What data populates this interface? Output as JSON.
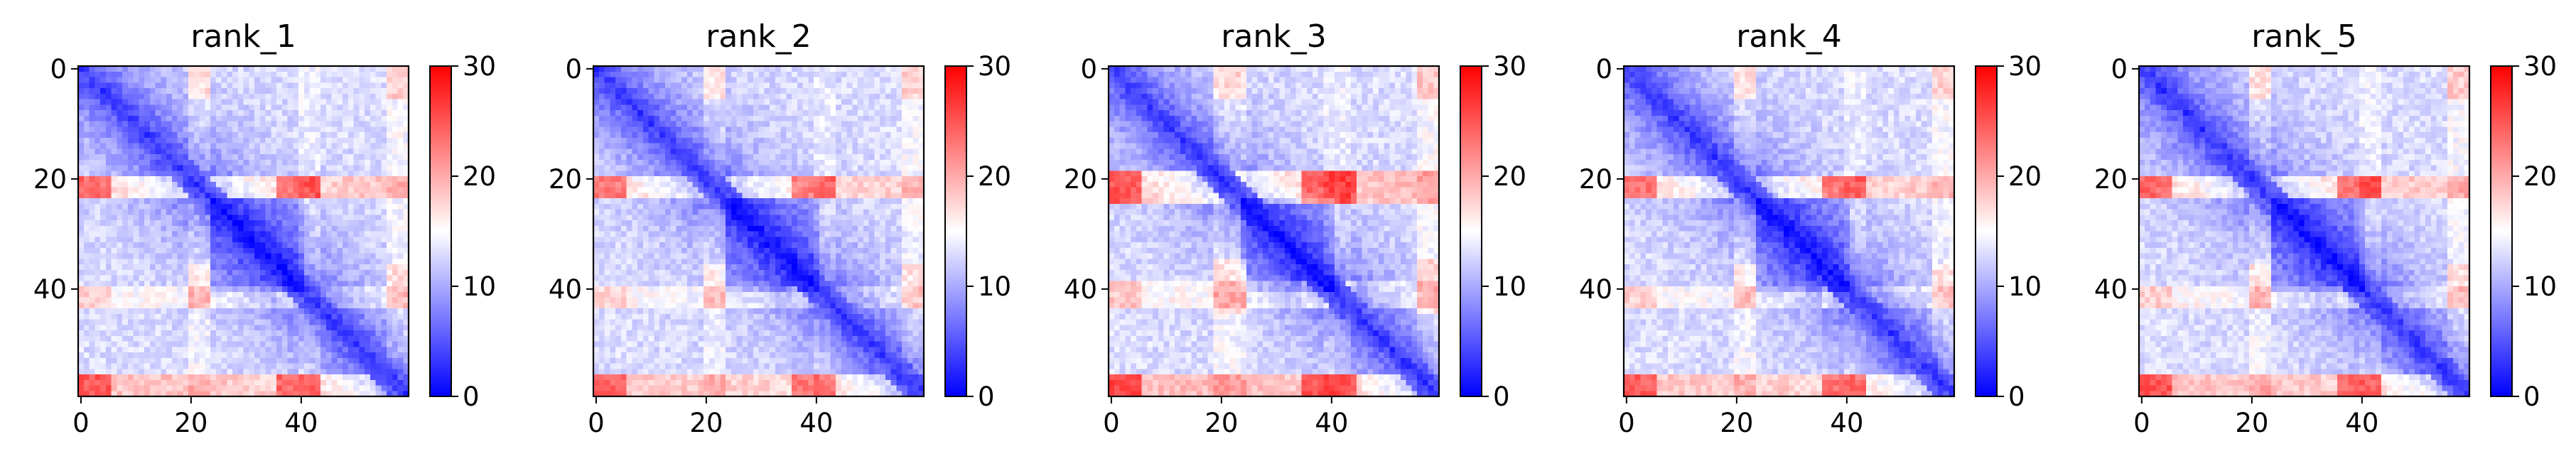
{
  "chart_data": [
    {
      "type": "heatmap",
      "title": "rank_1",
      "n": 60,
      "xticks": [
        0,
        20,
        40
      ],
      "yticks": [
        0,
        20,
        40
      ],
      "colorbar": {
        "min": 0,
        "max": 30,
        "ticks": [
          0,
          10,
          20,
          30
        ],
        "colormap": "bwr",
        "colors": [
          "#0000ff",
          "#ffffff",
          "#ff0000"
        ]
      },
      "features": {
        "red_bands": [
          [
            20,
            23
          ],
          [
            56,
            59
          ]
        ],
        "red_columns": [
          [
            0,
            5
          ],
          [
            36,
            43
          ]
        ],
        "light_bands": [
          [
            40,
            43
          ]
        ],
        "dark_blocks": [
          [
            24,
            40
          ]
        ],
        "band_strength": 1.0
      }
    },
    {
      "type": "heatmap",
      "title": "rank_2",
      "n": 60,
      "xticks": [
        0,
        20,
        40
      ],
      "yticks": [
        0,
        20,
        40
      ],
      "colorbar": {
        "min": 0,
        "max": 30,
        "ticks": [
          0,
          10,
          20,
          30
        ],
        "colormap": "bwr",
        "colors": [
          "#0000ff",
          "#ffffff",
          "#ff0000"
        ]
      },
      "features": {
        "red_bands": [
          [
            20,
            23
          ],
          [
            56,
            59
          ]
        ],
        "red_columns": [
          [
            0,
            5
          ],
          [
            36,
            43
          ]
        ],
        "light_bands": [
          [
            40,
            43
          ]
        ],
        "dark_blocks": [
          [
            24,
            40
          ]
        ],
        "band_strength": 0.92
      }
    },
    {
      "type": "heatmap",
      "title": "rank_3",
      "n": 60,
      "xticks": [
        0,
        20,
        40
      ],
      "yticks": [
        0,
        20,
        40
      ],
      "colorbar": {
        "min": 0,
        "max": 30,
        "ticks": [
          0,
          10,
          20,
          30
        ],
        "colormap": "bwr",
        "colors": [
          "#0000ff",
          "#ffffff",
          "#ff0000"
        ]
      },
      "features": {
        "red_bands": [
          [
            19,
            24
          ],
          [
            56,
            59
          ]
        ],
        "red_columns": [
          [
            0,
            5
          ],
          [
            35,
            44
          ]
        ],
        "light_bands": [
          [
            39,
            43
          ]
        ],
        "dark_blocks": [
          [
            24,
            40
          ]
        ],
        "band_strength": 1.08
      }
    },
    {
      "type": "heatmap",
      "title": "rank_4",
      "n": 60,
      "xticks": [
        0,
        20,
        40
      ],
      "yticks": [
        0,
        20,
        40
      ],
      "colorbar": {
        "min": 0,
        "max": 30,
        "ticks": [
          0,
          10,
          20,
          30
        ],
        "colormap": "bwr",
        "colors": [
          "#0000ff",
          "#ffffff",
          "#ff0000"
        ]
      },
      "features": {
        "red_bands": [
          [
            20,
            23
          ],
          [
            56,
            59
          ]
        ],
        "red_columns": [
          [
            0,
            5
          ],
          [
            36,
            43
          ]
        ],
        "light_bands": [
          [
            40,
            43
          ]
        ],
        "dark_blocks": [
          [
            24,
            40
          ]
        ],
        "band_strength": 0.95
      }
    },
    {
      "type": "heatmap",
      "title": "rank_5",
      "n": 60,
      "xticks": [
        0,
        20,
        40
      ],
      "yticks": [
        0,
        20,
        40
      ],
      "colorbar": {
        "min": 0,
        "max": 30,
        "ticks": [
          0,
          10,
          20,
          30
        ],
        "colormap": "bwr",
        "colors": [
          "#0000ff",
          "#ffffff",
          "#ff0000"
        ]
      },
      "features": {
        "red_bands": [
          [
            20,
            23
          ],
          [
            56,
            59
          ]
        ],
        "red_columns": [
          [
            0,
            5
          ],
          [
            36,
            43
          ]
        ],
        "light_bands": [
          [
            40,
            43
          ]
        ],
        "dark_blocks": [
          [
            24,
            40
          ]
        ],
        "band_strength": 1.0
      }
    }
  ]
}
